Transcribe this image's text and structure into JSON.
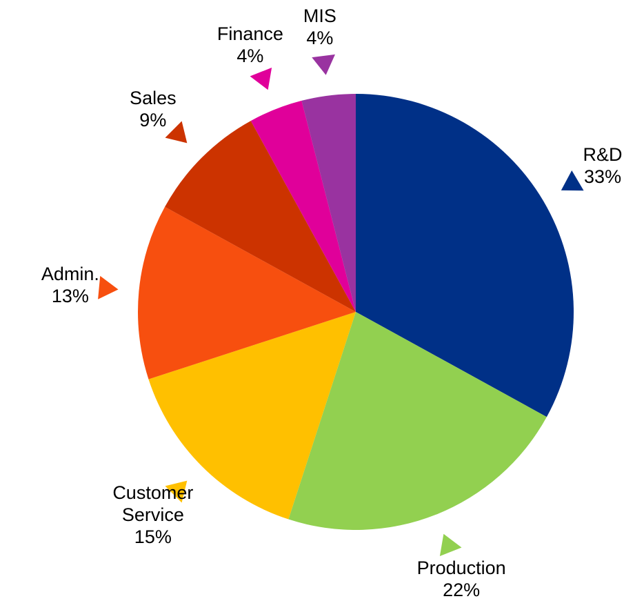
{
  "chart_data": {
    "type": "pie",
    "categories": [
      "R&D",
      "Production",
      "Customer Service",
      "Admin.",
      "Sales",
      "Finance",
      "MIS"
    ],
    "values": [
      33,
      22,
      15,
      13,
      9,
      4,
      4
    ],
    "value_labels": [
      "33%",
      "22%",
      "15%",
      "13%",
      "9%",
      "4%",
      "4%"
    ],
    "colors": [
      "#003087",
      "#92d050",
      "#ffc000",
      "#f74f0f",
      "#cc3300",
      "#e0009a",
      "#9933a0"
    ]
  }
}
